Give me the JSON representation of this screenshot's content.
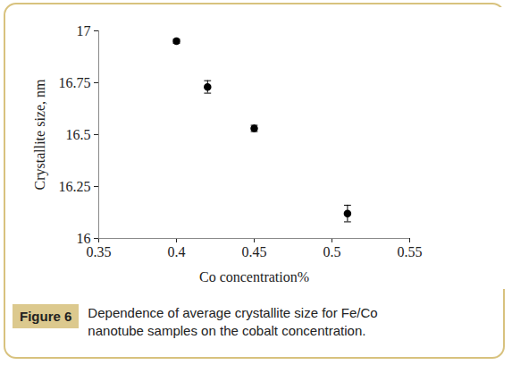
{
  "chart_data": {
    "type": "scatter",
    "figure_label": "Figure 6",
    "caption": "Dependence of average crystallite size for Fe/Co nanotube samples on the cobalt concentration.",
    "x_label": "Co concentration%",
    "y_label": "Crystallite size, nm",
    "x": [
      0.4,
      0.42,
      0.45,
      0.51
    ],
    "values": [
      16.95,
      16.73,
      16.53,
      16.12
    ],
    "errors": [
      0.01,
      0.03,
      0.015,
      0.04
    ],
    "color": "#000000",
    "marker": "circle",
    "xlim": [
      0.35,
      0.55
    ],
    "xticks": [
      0.35,
      0.4,
      0.45,
      0.5,
      0.55
    ],
    "ylim": [
      16,
      17
    ],
    "yticks": [
      16,
      16.25,
      16.5,
      16.75,
      17
    ],
    "grid": false
  }
}
